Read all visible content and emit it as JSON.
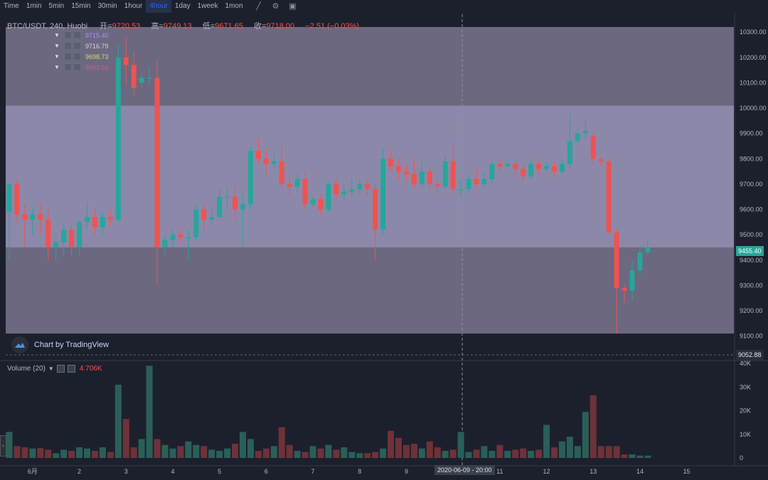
{
  "toolbar": {
    "timeframes": [
      "Time",
      "1min",
      "5min",
      "15min",
      "30min",
      "1hour",
      "4hour",
      "1day",
      "1week",
      "1mon"
    ],
    "active": "4hour",
    "icons": [
      "chart-type-icon",
      "settings-icon",
      "screenshot-icon"
    ]
  },
  "legend": {
    "symbol": "BTC/USDT, 240, Huobi",
    "open_label": "开=",
    "open": "9720.53",
    "high_label": "高=",
    "high": "9749.13",
    "low_label": "低=",
    "low": "9671.65",
    "close_label": "收=",
    "close": "9718.00",
    "change": "−2.51 (−0.03%)",
    "ma_values": [
      "9715.40",
      "9716.79",
      "9698.73",
      "9663.54"
    ],
    "ma_colors": [
      "#b18cff",
      "#cfd3e6",
      "#d9d67a",
      "#d05aa0"
    ]
  },
  "volume_legend": {
    "label": "Volume (20)",
    "value": "4.706K"
  },
  "attribution": "Chart by TradingView",
  "price_tags": {
    "current": "9455.40",
    "low": "9052.88",
    "crosshair_date": "2020-06-09 - 20:00"
  },
  "colors": {
    "up": "#26a69a",
    "down": "#ef5350",
    "band_outer": "#6b6880",
    "band_inner": "#8c88aa",
    "bg": "#1c202d"
  },
  "chart_data": {
    "type": "candlestick",
    "title": "BTC/USDT, 240, Huobi",
    "price_axis_ticks": [
      9100,
      9200,
      9300,
      9400,
      9500,
      9600,
      9700,
      9800,
      9900,
      10000,
      10100,
      10200,
      10300
    ],
    "price_axis_labels": [
      "9100.00",
      "9200.00",
      "9300.00",
      "9400.00",
      "9500.00",
      "9600.00",
      "9700.00",
      "9800.00",
      "9900.00",
      "10000.00",
      "10100.00",
      "10200.00",
      "10300.00"
    ],
    "volume_axis_ticks": [
      0,
      10000,
      20000,
      30000,
      40000
    ],
    "volume_axis_labels": [
      "0",
      "10K",
      "20K",
      "30K",
      "40K"
    ],
    "x_labels": [
      "6月",
      "2",
      "3",
      "4",
      "5",
      "6",
      "7",
      "8",
      "9",
      "10",
      "11",
      "12",
      "13",
      "14",
      "15"
    ],
    "x_label_bar_index": [
      3,
      9,
      15,
      21,
      27,
      33,
      39,
      45,
      51,
      57,
      63,
      69,
      75,
      81,
      87
    ],
    "price_ylim": [
      9085,
      10320
    ],
    "volume_ylim": [
      0,
      40000
    ],
    "bands": [
      {
        "from": 9110,
        "to": 9450,
        "shade": "outer"
      },
      {
        "from": 9450,
        "to": 10010,
        "shade": "inner"
      },
      {
        "from": 10010,
        "to": 10320,
        "shade": "outer"
      }
    ],
    "candles": [
      [
        9590,
        9700,
        9700,
        9400
      ],
      [
        9700,
        9580,
        9720,
        9550
      ],
      [
        9580,
        9560,
        9620,
        9450
      ],
      [
        9560,
        9580,
        9610,
        9500
      ],
      [
        9580,
        9560,
        9620,
        9500
      ],
      [
        9560,
        9450,
        9600,
        9400
      ],
      [
        9450,
        9470,
        9500,
        9400
      ],
      [
        9470,
        9520,
        9550,
        9420
      ],
      [
        9520,
        9450,
        9540,
        9420
      ],
      [
        9450,
        9550,
        9560,
        9420
      ],
      [
        9550,
        9570,
        9630,
        9520
      ],
      [
        9570,
        9530,
        9600,
        9500
      ],
      [
        9530,
        9570,
        9590,
        9500
      ],
      [
        9570,
        9560,
        9600,
        9530
      ],
      [
        9560,
        10200,
        10250,
        9550
      ],
      [
        10200,
        10170,
        10280,
        10090
      ],
      [
        10170,
        10080,
        10220,
        10050
      ],
      [
        10100,
        10120,
        10140,
        10080
      ],
      [
        10120,
        10120,
        10160,
        10090
      ],
      [
        10120,
        9450,
        10190,
        9300
      ],
      [
        9450,
        9480,
        9500,
        9420
      ],
      [
        9480,
        9500,
        9520,
        9450
      ],
      [
        9500,
        9490,
        9520,
        9470
      ],
      [
        9490,
        9490,
        9520,
        9400
      ],
      [
        9490,
        9600,
        9620,
        9480
      ],
      [
        9600,
        9560,
        9620,
        9520
      ],
      [
        9560,
        9570,
        9610,
        9540
      ],
      [
        9570,
        9650,
        9680,
        9560
      ],
      [
        9650,
        9650,
        9690,
        9600
      ],
      [
        9650,
        9600,
        9690,
        9560
      ],
      [
        9600,
        9620,
        9660,
        9450
      ],
      [
        9620,
        9830,
        9850,
        9600
      ],
      [
        9830,
        9800,
        9880,
        9780
      ],
      [
        9800,
        9780,
        9840,
        9740
      ],
      [
        9780,
        9790,
        9830,
        9760
      ],
      [
        9790,
        9700,
        9850,
        9680
      ],
      [
        9700,
        9690,
        9730,
        9650
      ],
      [
        9690,
        9720,
        9740,
        9670
      ],
      [
        9720,
        9620,
        9750,
        9600
      ],
      [
        9620,
        9640,
        9650,
        9610
      ],
      [
        9640,
        9600,
        9660,
        9580
      ],
      [
        9600,
        9700,
        9710,
        9590
      ],
      [
        9700,
        9660,
        9720,
        9640
      ],
      [
        9660,
        9670,
        9700,
        9630
      ],
      [
        9670,
        9680,
        9720,
        9650
      ],
      [
        9680,
        9700,
        9720,
        9660
      ],
      [
        9700,
        9680,
        9720,
        9650
      ],
      [
        9680,
        9520,
        9700,
        9400
      ],
      [
        9520,
        9800,
        9840,
        9500
      ],
      [
        9800,
        9770,
        9830,
        9750
      ],
      [
        9770,
        9750,
        9800,
        9720
      ],
      [
        9750,
        9740,
        9780,
        9710
      ],
      [
        9740,
        9700,
        9800,
        9680
      ],
      [
        9700,
        9750,
        9790,
        9690
      ],
      [
        9750,
        9700,
        9770,
        9680
      ],
      [
        9700,
        9690,
        9710,
        9660
      ],
      [
        9690,
        9790,
        9810,
        9680
      ],
      [
        9790,
        9680,
        9850,
        9660
      ],
      [
        9680,
        9680,
        9720,
        9650
      ],
      [
        9680,
        9720,
        9740,
        9660
      ],
      [
        9720,
        9700,
        9760,
        9680
      ],
      [
        9700,
        9720,
        9750,
        9690
      ],
      [
        9720,
        9780,
        9790,
        9700
      ],
      [
        9780,
        9770,
        9800,
        9750
      ],
      [
        9770,
        9780,
        9800,
        9760
      ],
      [
        9780,
        9760,
        9790,
        9740
      ],
      [
        9760,
        9730,
        9780,
        9710
      ],
      [
        9730,
        9780,
        9800,
        9720
      ],
      [
        9780,
        9760,
        9800,
        9740
      ],
      [
        9760,
        9770,
        9790,
        9750
      ],
      [
        9770,
        9750,
        9790,
        9730
      ],
      [
        9750,
        9780,
        9800,
        9740
      ],
      [
        9780,
        9870,
        9980,
        9760
      ],
      [
        9870,
        9900,
        9920,
        9850
      ],
      [
        9900,
        9910,
        9960,
        9880
      ],
      [
        9890,
        9800,
        9900,
        9780
      ],
      [
        9800,
        9790,
        9810,
        9770
      ],
      [
        9790,
        9510,
        9800,
        9500
      ],
      [
        9510,
        9290,
        9520,
        9110
      ],
      [
        9290,
        9280,
        9300,
        9230
      ],
      [
        9280,
        9360,
        9400,
        9240
      ],
      [
        9360,
        9430,
        9460,
        9340
      ],
      [
        9430,
        9450,
        9480,
        9420
      ]
    ],
    "volumes": [
      11000,
      5000,
      4500,
      4000,
      4200,
      3500,
      2000,
      3500,
      3000,
      4500,
      4000,
      3000,
      4500,
      2500,
      31000,
      16500,
      4500,
      8000,
      39000,
      8000,
      5500,
      4000,
      5000,
      7000,
      5500,
      5000,
      3500,
      3000,
      4000,
      6000,
      11000,
      8000,
      3000,
      4000,
      5000,
      13000,
      5500,
      3000,
      2500,
      5000,
      4000,
      5500,
      3500,
      4500,
      2500,
      2000,
      2000,
      2500,
      4000,
      11500,
      8500,
      5500,
      6000,
      4000,
      7000,
      4500,
      3000,
      3500,
      11000,
      2500,
      3500,
      5000,
      3000,
      5500,
      3000,
      3500,
      4000,
      3000,
      3500,
      14000,
      4500,
      7000,
      9000,
      5000,
      19500,
      26500,
      5000,
      5000,
      5000,
      1500,
      1500,
      1000,
      1000
    ]
  }
}
